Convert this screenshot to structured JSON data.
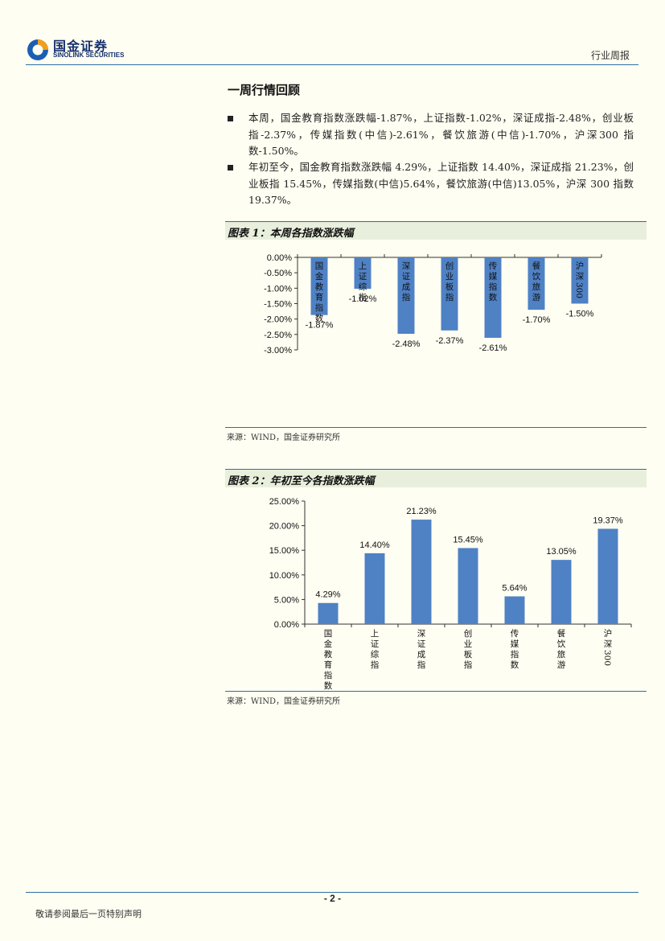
{
  "header": {
    "brand_cn": "国金证券",
    "brand_en": "SINOLINK SECURITIES",
    "report_type": "行业周报",
    "logo_colors": [
      "#1a5fb4",
      "#f0a01e",
      "#14306e"
    ]
  },
  "section": {
    "title": "一周行情回顾",
    "bullets": [
      "本周，国金教育指数涨跌幅-1.87%，上证指数-1.02%，深证成指-2.48%，创业板指-2.37%，传媒指数(中信)-2.61%，餐饮旅游(中信)-1.70%，沪深300 指数-1.50%。",
      "年初至今，国金教育指数涨跌幅 4.29%，上证指数 14.40%，深证成指 21.23%，创业板指 15.45%，传媒指数(中信)5.64%，餐饮旅游(中信)13.05%，沪深 300 指数 19.37%。"
    ]
  },
  "figures": [
    {
      "title": "图表 1：本周各指数涨跌幅",
      "source": "来源：WIND，国金证券研究所"
    },
    {
      "title": "图表 2：年初至今各指数涨跌幅",
      "source": "来源：WIND，国金证券研究所"
    }
  ],
  "chart_data": [
    {
      "type": "bar",
      "title": "图表 1：本周各指数涨跌幅",
      "categories": [
        "国金教育指数",
        "上证综指",
        "深证成指",
        "创业板指",
        "传媒指数",
        "餐饮旅游",
        "沪深300"
      ],
      "values": [
        -1.87,
        -1.02,
        -2.48,
        -2.37,
        -2.61,
        -1.7,
        -1.5
      ],
      "value_labels": [
        "-1.87%",
        "-1.02%",
        "-2.48%",
        "-2.37%",
        "-2.61%",
        "-1.70%",
        "-1.50%"
      ],
      "y_ticks": [
        "0.00%",
        "-0.50%",
        "-1.00%",
        "-1.50%",
        "-2.00%",
        "-2.50%",
        "-3.00%"
      ],
      "ylim": [
        -3.0,
        0.0
      ],
      "unit": "%",
      "color": "#4f81c5",
      "xlabel": "",
      "ylabel": "",
      "grid": false,
      "legend": "none"
    },
    {
      "type": "bar",
      "title": "图表 2：年初至今各指数涨跌幅",
      "categories": [
        "国金教育指数",
        "上证综指",
        "深证成指",
        "创业板指",
        "传媒指数",
        "餐饮旅游",
        "沪深300"
      ],
      "values": [
        4.29,
        14.4,
        21.23,
        15.45,
        5.64,
        13.05,
        19.37
      ],
      "value_labels": [
        "4.29%",
        "14.40%",
        "21.23%",
        "15.45%",
        "5.64%",
        "13.05%",
        "19.37%"
      ],
      "y_ticks": [
        "0.00%",
        "5.00%",
        "10.00%",
        "15.00%",
        "20.00%",
        "25.00%"
      ],
      "ylim": [
        0,
        25
      ],
      "unit": "%",
      "color": "#4f81c5",
      "xlabel": "",
      "ylabel": "",
      "grid": false,
      "legend": "none"
    }
  ],
  "footer": {
    "page_number": "- 2 -",
    "disclaimer": "敬请参阅最后一页特别声明"
  }
}
